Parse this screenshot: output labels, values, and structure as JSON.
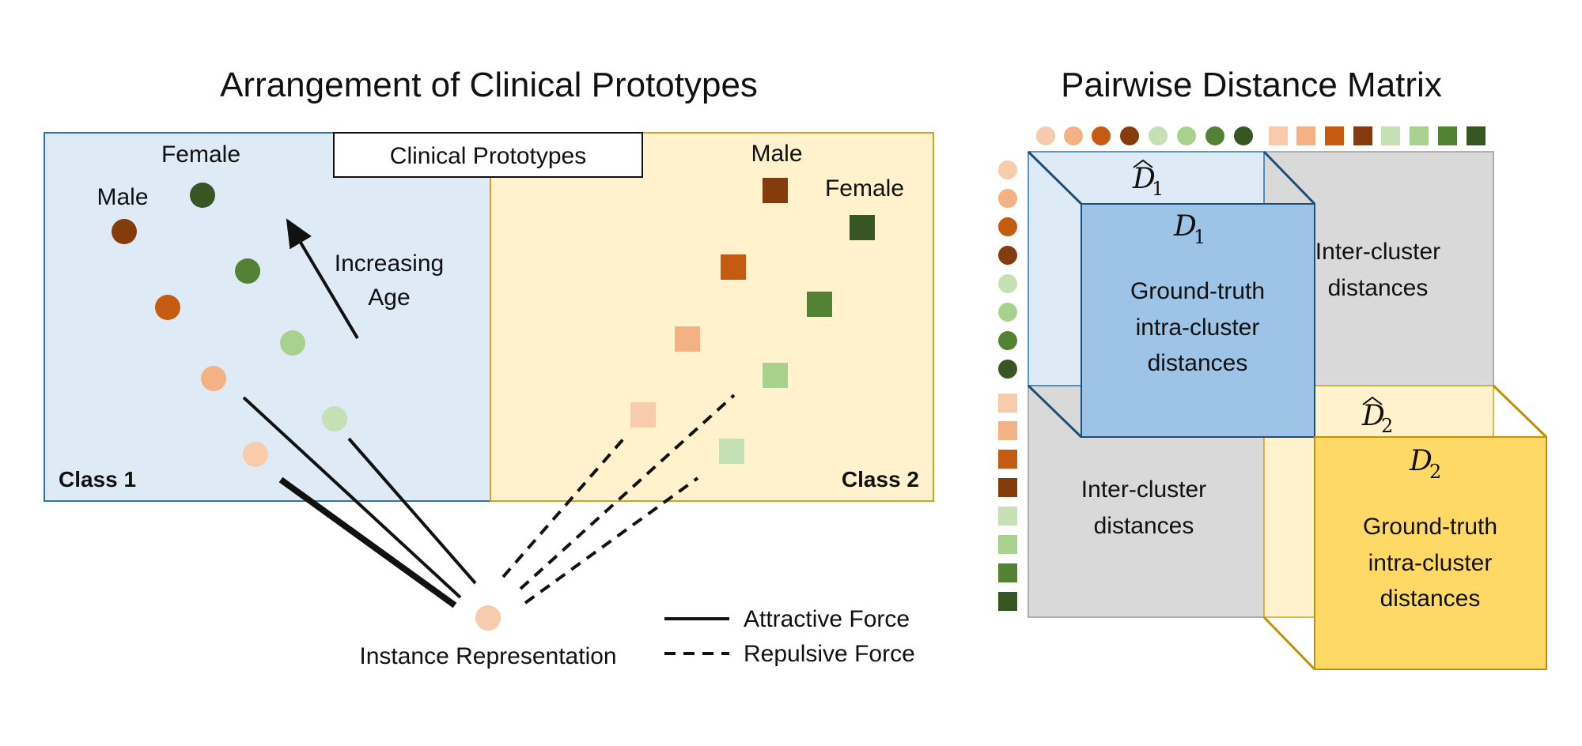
{
  "colors": {
    "c1": "#f8cbad",
    "c2": "#f4b183",
    "c3": "#c55a11",
    "c4": "#843c0c",
    "c5": "#c5e0b4",
    "c6": "#a9d18e",
    "c7": "#548235",
    "c8": "#375623",
    "class1_bg": "#deebf7",
    "class1_border": "#2e75b6",
    "class2_bg": "#fff2cc",
    "class2_border": "#d6a21c",
    "d1_face": "#9dc3e6",
    "d1_edge": "#1f4e79",
    "d2_face": "#ffd966",
    "d2_edge": "#bf9000",
    "inter_gray": "#d9d9d9"
  },
  "left": {
    "title": "Arrangement of Clinical Prototypes",
    "legend_box_label": "Clinical Prototypes",
    "class1_label": "Class 1",
    "class2_label": "Class 2",
    "class1_female": "Female",
    "class1_male": "Male",
    "class2_male": "Male",
    "class2_female": "Female",
    "age_line1": "Increasing",
    "age_line2": "Age",
    "instance_label": "Instance Representation",
    "legend_attractive": "Attractive Force",
    "legend_repulsive": "Repulsive Force"
  },
  "right": {
    "title": "Pairwise Distance Matrix",
    "d1_main": "D",
    "d1_sub": "1",
    "d1_hat": "D",
    "d1_hat_sub": "1",
    "d1_line1": "Ground-truth",
    "d1_line2": "intra-cluster",
    "d1_line3": "distances",
    "inter_top_line1": "Inter-cluster",
    "inter_top_line2": "distances",
    "inter_bottom_line1": "Inter-cluster",
    "inter_bottom_line2": "distances",
    "d2_main": "D",
    "d2_sub": "2",
    "d2_hat": "D",
    "d2_hat_sub": "2",
    "d2_line1": "Ground-truth",
    "d2_line2": "intra-cluster",
    "d2_line3": "distances"
  }
}
